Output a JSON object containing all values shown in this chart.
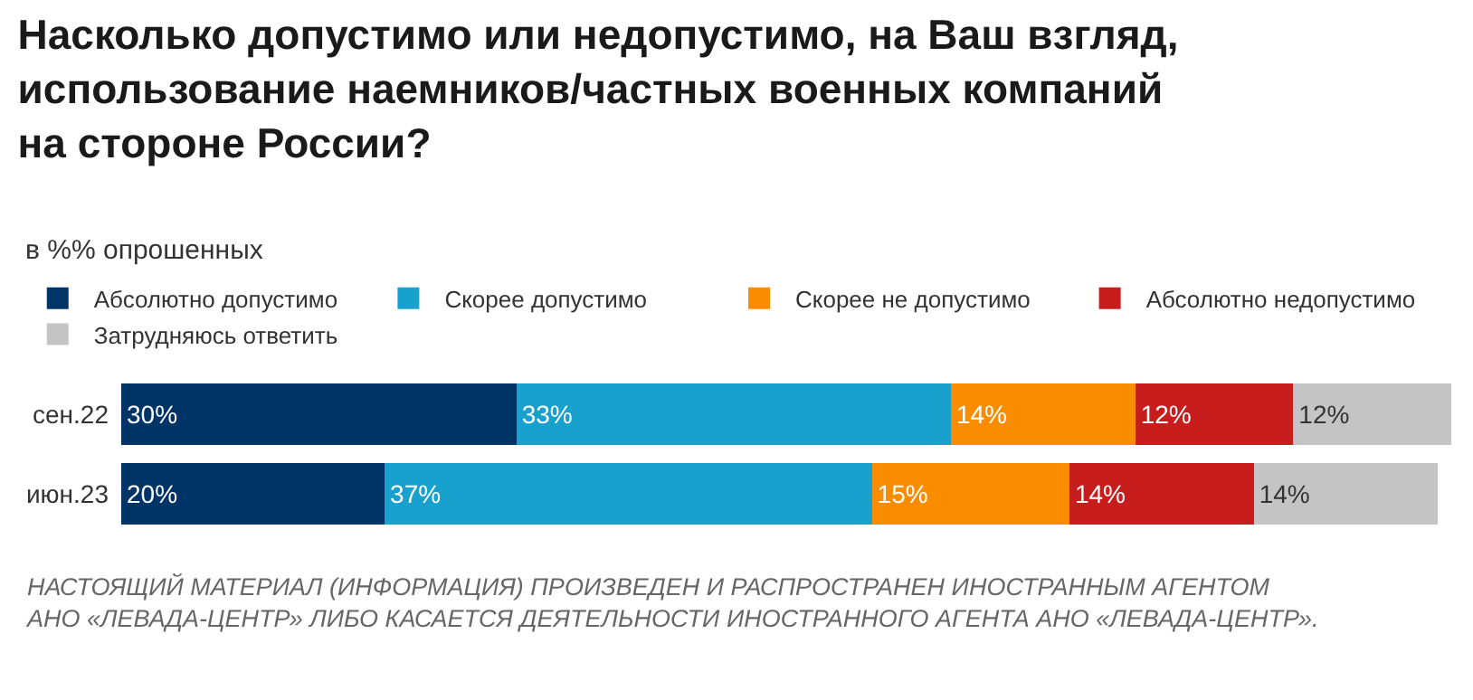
{
  "chart_data": {
    "type": "bar",
    "orientation": "horizontal",
    "stacked": true,
    "legend": "top left",
    "grid": false,
    "xlim": [
      0,
      101
    ],
    "title": "Насколько допустимо или недопустимо, на Ваш взгляд,\nиспользование наемников/частных военных компаний\nна стороне России?",
    "subtitle": "в %% опрошенных",
    "categories": [
      "сен.22",
      "июн.23"
    ],
    "series": [
      {
        "name": "Абсолютно допустимо",
        "color": "#003466",
        "values": [
          30,
          20
        ],
        "value_labels": [
          "30%",
          "20%"
        ]
      },
      {
        "name": "Скорее допустимо",
        "color": "#18a1cd",
        "values": [
          33,
          37
        ],
        "value_labels": [
          "33%",
          "37%"
        ]
      },
      {
        "name": "Скорее не допустимо",
        "color": "#fa8c00",
        "values": [
          14,
          15
        ],
        "value_labels": [
          "14%",
          "15%"
        ]
      },
      {
        "name": "Абсолютно недопустимо",
        "color": "#c71e1d",
        "values": [
          12,
          14
        ],
        "value_labels": [
          "12%",
          "14%"
        ]
      },
      {
        "name": "Затрудняюсь ответить",
        "color": "#c4c4c4",
        "values": [
          12,
          14
        ],
        "value_labels": [
          "12%",
          "14%"
        ]
      }
    ],
    "annotations": [
      "НАСТОЯЩИЙ МАТЕРИАЛ (ИНФОРМАЦИЯ) ПРОИЗВЕДЕН И РАСПРОСТРАНЕН ИНОСТРАННЫМ АГЕНТОМ\nАНО «ЛЕВАДА-ЦЕНТР» ЛИБО КАСАЕТСЯ ДЕЯТЕЛЬНОСТИ ИНОСТРАННОГО АГЕНТА АНО «ЛЕВАДА-ЦЕНТР»."
    ]
  }
}
